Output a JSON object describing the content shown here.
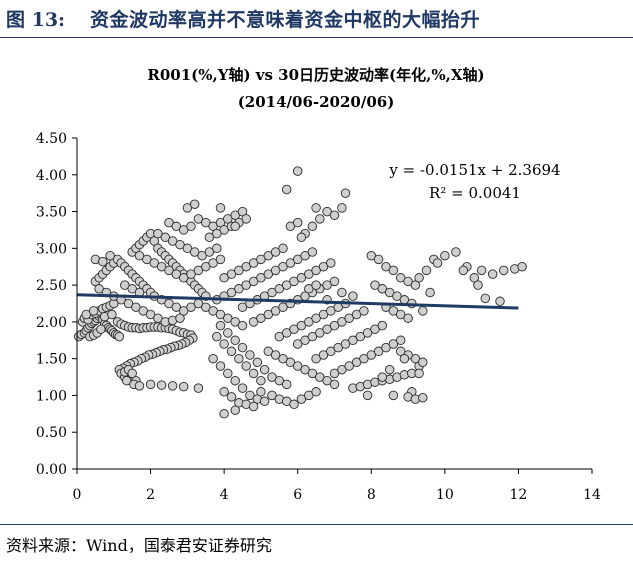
{
  "header": {
    "figure_label": "图 13:",
    "figure_title": "资金波动率高并不意味着资金中枢的大幅抬升"
  },
  "footer": {
    "source": "资料来源：Wind，国泰君安证券研究"
  },
  "colors": {
    "header_text": "#1f3864",
    "marker_fill": "#cfcfcf",
    "marker_stroke": "#2a2a2a",
    "trendline": "#1f3b64"
  },
  "chart_data": {
    "type": "scatter",
    "title": "R001(%,Y轴) vs 30日历史波动率(年化,%,X轴)",
    "subtitle": "(2014/06-2020/06)",
    "xlabel": "",
    "ylabel": "",
    "xlim": [
      0,
      14
    ],
    "ylim": [
      0,
      4.5
    ],
    "x_ticks": [
      "0",
      "2",
      "4",
      "6",
      "8",
      "10",
      "12",
      "14"
    ],
    "y_ticks": [
      "0.00",
      "0.50",
      "1.00",
      "1.50",
      "2.00",
      "2.50",
      "3.00",
      "3.50",
      "4.00",
      "4.50"
    ],
    "grid": false,
    "legend": "none",
    "trendline": {
      "slope": -0.0151,
      "intercept": 2.3694,
      "x_range": [
        0,
        12
      ]
    },
    "equation": "y = -0.0151x + 2.3694",
    "r_squared": "R² = 0.0041",
    "points": [
      [
        0.05,
        1.8
      ],
      [
        0.12,
        1.83
      ],
      [
        0.2,
        1.85
      ],
      [
        0.25,
        1.88
      ],
      [
        0.3,
        1.92
      ],
      [
        0.35,
        1.95
      ],
      [
        0.4,
        1.98
      ],
      [
        0.45,
        2.0
      ],
      [
        0.5,
        2.02
      ],
      [
        0.55,
        2.05
      ],
      [
        0.6,
        2.08
      ],
      [
        0.65,
        2.1
      ],
      [
        0.7,
        2.03
      ],
      [
        0.75,
        1.97
      ],
      [
        0.8,
        1.95
      ],
      [
        0.85,
        1.92
      ],
      [
        0.9,
        1.9
      ],
      [
        0.95,
        1.88
      ],
      [
        1.0,
        1.85
      ],
      [
        1.05,
        1.83
      ],
      [
        1.1,
        1.82
      ],
      [
        1.15,
        1.8
      ],
      [
        0.15,
        2.0
      ],
      [
        0.2,
        2.05
      ],
      [
        0.3,
        2.03
      ],
      [
        0.4,
        2.1
      ],
      [
        0.5,
        2.12
      ],
      [
        0.6,
        2.15
      ],
      [
        0.7,
        2.18
      ],
      [
        0.8,
        2.2
      ],
      [
        0.9,
        2.22
      ],
      [
        1.0,
        2.25
      ],
      [
        0.35,
        1.8
      ],
      [
        0.45,
        1.82
      ],
      [
        0.55,
        1.85
      ],
      [
        0.65,
        1.9
      ],
      [
        0.25,
        2.1
      ],
      [
        0.45,
        2.15
      ],
      [
        0.75,
        2.07
      ],
      [
        0.95,
        2.1
      ],
      [
        1.1,
        2.0
      ],
      [
        1.2,
        1.97
      ],
      [
        1.3,
        1.95
      ],
      [
        1.4,
        1.93
      ],
      [
        1.5,
        1.92
      ],
      [
        1.6,
        1.92
      ],
      [
        1.7,
        1.91
      ],
      [
        1.8,
        1.92
      ],
      [
        1.9,
        1.92
      ],
      [
        2.0,
        1.93
      ],
      [
        2.1,
        1.93
      ],
      [
        2.2,
        1.93
      ],
      [
        2.3,
        1.92
      ],
      [
        2.4,
        1.92
      ],
      [
        2.5,
        1.91
      ],
      [
        2.6,
        1.9
      ],
      [
        2.7,
        1.88
      ],
      [
        2.8,
        1.86
      ],
      [
        2.9,
        1.85
      ],
      [
        3.0,
        1.83
      ],
      [
        3.1,
        1.82
      ],
      [
        3.15,
        1.78
      ],
      [
        3.05,
        1.75
      ],
      [
        2.95,
        1.72
      ],
      [
        2.85,
        1.7
      ],
      [
        2.75,
        1.68
      ],
      [
        2.65,
        1.67
      ],
      [
        2.55,
        1.65
      ],
      [
        2.45,
        1.63
      ],
      [
        2.35,
        1.62
      ],
      [
        2.25,
        1.6
      ],
      [
        2.15,
        1.58
      ],
      [
        2.05,
        1.56
      ],
      [
        1.95,
        1.55
      ],
      [
        1.85,
        1.52
      ],
      [
        1.75,
        1.5
      ],
      [
        1.65,
        1.47
      ],
      [
        1.55,
        1.45
      ],
      [
        1.45,
        1.43
      ],
      [
        1.35,
        1.4
      ],
      [
        1.25,
        1.37
      ],
      [
        1.15,
        1.35
      ],
      [
        1.2,
        1.3
      ],
      [
        1.3,
        1.25
      ],
      [
        1.45,
        1.22
      ],
      [
        1.6,
        1.2
      ],
      [
        1.3,
        1.32
      ],
      [
        1.4,
        1.35
      ],
      [
        1.5,
        1.3
      ],
      [
        1.35,
        1.2
      ],
      [
        1.55,
        1.15
      ],
      [
        1.7,
        1.13
      ],
      [
        2.0,
        1.15
      ],
      [
        2.3,
        1.14
      ],
      [
        2.6,
        1.13
      ],
      [
        2.9,
        1.12
      ],
      [
        3.3,
        1.1
      ],
      [
        0.5,
        2.55
      ],
      [
        0.6,
        2.6
      ],
      [
        0.7,
        2.65
      ],
      [
        0.8,
        2.7
      ],
      [
        0.9,
        2.75
      ],
      [
        1.0,
        2.8
      ],
      [
        1.1,
        2.85
      ],
      [
        1.2,
        2.8
      ],
      [
        0.5,
        2.85
      ],
      [
        0.7,
        2.82
      ],
      [
        0.9,
        2.9
      ],
      [
        1.3,
        2.75
      ],
      [
        1.4,
        2.7
      ],
      [
        1.5,
        2.65
      ],
      [
        1.6,
        2.6
      ],
      [
        1.7,
        2.55
      ],
      [
        1.8,
        2.5
      ],
      [
        1.9,
        2.45
      ],
      [
        2.0,
        2.4
      ],
      [
        2.1,
        2.35
      ],
      [
        1.3,
        2.5
      ],
      [
        1.5,
        2.45
      ],
      [
        1.7,
        2.4
      ],
      [
        0.6,
        2.45
      ],
      [
        0.8,
        2.4
      ],
      [
        1.0,
        2.35
      ],
      [
        1.2,
        2.3
      ],
      [
        1.4,
        2.25
      ],
      [
        1.6,
        2.2
      ],
      [
        1.8,
        2.15
      ],
      [
        2.0,
        2.1
      ],
      [
        2.2,
        2.05
      ],
      [
        2.4,
        2.0
      ],
      [
        2.6,
        2.02
      ],
      [
        2.8,
        2.05
      ],
      [
        1.5,
        2.95
      ],
      [
        1.6,
        3.0
      ],
      [
        1.7,
        3.05
      ],
      [
        1.8,
        3.1
      ],
      [
        1.9,
        3.15
      ],
      [
        2.0,
        3.2
      ],
      [
        2.1,
        3.1
      ],
      [
        2.2,
        3.0
      ],
      [
        2.3,
        2.95
      ],
      [
        2.4,
        2.9
      ],
      [
        2.5,
        2.85
      ],
      [
        2.6,
        2.8
      ],
      [
        2.7,
        2.75
      ],
      [
        2.8,
        2.7
      ],
      [
        2.9,
        2.65
      ],
      [
        3.0,
        2.6
      ],
      [
        3.1,
        2.55
      ],
      [
        3.2,
        2.5
      ],
      [
        3.3,
        2.45
      ],
      [
        3.4,
        2.4
      ],
      [
        3.5,
        2.35
      ],
      [
        1.7,
        2.9
      ],
      [
        1.9,
        2.85
      ],
      [
        2.1,
        2.8
      ],
      [
        2.3,
        2.75
      ],
      [
        2.5,
        2.7
      ],
      [
        2.7,
        2.65
      ],
      [
        2.9,
        2.6
      ],
      [
        3.1,
        2.65
      ],
      [
        3.3,
        2.7
      ],
      [
        3.5,
        2.75
      ],
      [
        3.7,
        2.8
      ],
      [
        3.9,
        2.85
      ],
      [
        2.2,
        3.2
      ],
      [
        2.4,
        3.15
      ],
      [
        2.6,
        3.1
      ],
      [
        2.8,
        3.05
      ],
      [
        3.0,
        3.0
      ],
      [
        3.2,
        2.95
      ],
      [
        3.4,
        2.9
      ],
      [
        3.6,
        2.95
      ],
      [
        3.8,
        3.0
      ],
      [
        2.5,
        3.35
      ],
      [
        2.7,
        3.3
      ],
      [
        2.9,
        3.25
      ],
      [
        3.1,
        3.3
      ],
      [
        3.3,
        3.4
      ],
      [
        3.5,
        3.35
      ],
      [
        3.7,
        3.3
      ],
      [
        3.9,
        3.35
      ],
      [
        4.1,
        3.4
      ],
      [
        4.3,
        3.45
      ],
      [
        4.5,
        3.5
      ],
      [
        4.6,
        3.4
      ],
      [
        4.0,
        3.25
      ],
      [
        4.2,
        3.3
      ],
      [
        4.4,
        3.35
      ],
      [
        3.8,
        3.2
      ],
      [
        3.6,
        3.15
      ],
      [
        3.0,
        3.55
      ],
      [
        3.2,
        3.6
      ],
      [
        3.9,
        3.55
      ],
      [
        4.3,
        3.3
      ],
      [
        2.3,
        2.3
      ],
      [
        2.5,
        2.25
      ],
      [
        2.7,
        2.2
      ],
      [
        2.9,
        2.15
      ],
      [
        3.1,
        2.2
      ],
      [
        3.3,
        2.25
      ],
      [
        3.5,
        2.2
      ],
      [
        3.7,
        2.15
      ],
      [
        3.9,
        2.1
      ],
      [
        4.1,
        2.05
      ],
      [
        4.3,
        2.0
      ],
      [
        4.5,
        1.95
      ],
      [
        3.8,
        2.3
      ],
      [
        4.0,
        2.35
      ],
      [
        4.2,
        2.4
      ],
      [
        4.4,
        2.45
      ],
      [
        4.6,
        2.5
      ],
      [
        4.8,
        2.55
      ],
      [
        5.0,
        2.6
      ],
      [
        5.2,
        2.65
      ],
      [
        5.4,
        2.7
      ],
      [
        5.6,
        2.75
      ],
      [
        5.8,
        2.8
      ],
      [
        6.0,
        2.85
      ],
      [
        6.2,
        2.9
      ],
      [
        6.4,
        2.95
      ],
      [
        4.0,
        2.6
      ],
      [
        4.2,
        2.65
      ],
      [
        4.4,
        2.7
      ],
      [
        4.6,
        2.75
      ],
      [
        4.8,
        2.8
      ],
      [
        5.0,
        2.85
      ],
      [
        5.2,
        2.9
      ],
      [
        5.4,
        2.95
      ],
      [
        5.6,
        3.0
      ],
      [
        4.5,
        2.2
      ],
      [
        4.7,
        2.25
      ],
      [
        4.9,
        2.3
      ],
      [
        5.1,
        2.35
      ],
      [
        5.3,
        2.4
      ],
      [
        5.5,
        2.45
      ],
      [
        5.7,
        2.5
      ],
      [
        5.9,
        2.55
      ],
      [
        6.1,
        2.6
      ],
      [
        6.3,
        2.65
      ],
      [
        6.5,
        2.7
      ],
      [
        6.7,
        2.75
      ],
      [
        6.9,
        2.8
      ],
      [
        4.8,
        2.0
      ],
      [
        5.0,
        2.05
      ],
      [
        5.2,
        2.1
      ],
      [
        5.4,
        2.15
      ],
      [
        5.6,
        2.2
      ],
      [
        5.8,
        2.25
      ],
      [
        6.0,
        2.3
      ],
      [
        6.2,
        2.35
      ],
      [
        6.4,
        2.4
      ],
      [
        6.6,
        2.45
      ],
      [
        6.8,
        2.5
      ],
      [
        7.0,
        2.55
      ],
      [
        3.9,
        1.95
      ],
      [
        4.1,
        1.85
      ],
      [
        4.3,
        1.75
      ],
      [
        4.5,
        1.65
      ],
      [
        4.7,
        1.55
      ],
      [
        4.9,
        1.45
      ],
      [
        5.1,
        1.35
      ],
      [
        5.3,
        1.25
      ],
      [
        5.5,
        1.2
      ],
      [
        5.7,
        1.15
      ],
      [
        3.8,
        1.8
      ],
      [
        4.0,
        1.7
      ],
      [
        4.2,
        1.6
      ],
      [
        4.4,
        1.5
      ],
      [
        4.6,
        1.4
      ],
      [
        4.8,
        1.3
      ],
      [
        5.0,
        1.2
      ],
      [
        3.7,
        1.5
      ],
      [
        3.9,
        1.4
      ],
      [
        4.1,
        1.3
      ],
      [
        4.3,
        1.2
      ],
      [
        4.5,
        1.1
      ],
      [
        4.7,
        1.0
      ],
      [
        4.9,
        0.95
      ],
      [
        5.1,
        0.92
      ],
      [
        4.0,
        1.05
      ],
      [
        4.2,
        0.98
      ],
      [
        4.4,
        0.9
      ],
      [
        4.6,
        0.88
      ],
      [
        4.8,
        0.85
      ],
      [
        4.0,
        0.75
      ],
      [
        4.3,
        0.8
      ],
      [
        5.0,
        1.05
      ],
      [
        5.3,
        1.0
      ],
      [
        5.5,
        0.95
      ],
      [
        5.7,
        0.92
      ],
      [
        5.9,
        0.88
      ],
      [
        6.1,
        0.95
      ],
      [
        6.3,
        1.0
      ],
      [
        6.5,
        1.05
      ],
      [
        5.2,
        1.6
      ],
      [
        5.4,
        1.55
      ],
      [
        5.6,
        1.5
      ],
      [
        5.8,
        1.45
      ],
      [
        6.0,
        1.4
      ],
      [
        6.2,
        1.35
      ],
      [
        6.4,
        1.3
      ],
      [
        6.6,
        1.25
      ],
      [
        6.8,
        1.2
      ],
      [
        7.0,
        1.15
      ],
      [
        5.5,
        1.8
      ],
      [
        5.7,
        1.85
      ],
      [
        5.9,
        1.9
      ],
      [
        6.1,
        1.95
      ],
      [
        6.3,
        2.0
      ],
      [
        6.5,
        2.05
      ],
      [
        6.7,
        2.1
      ],
      [
        6.9,
        2.15
      ],
      [
        7.1,
        2.2
      ],
      [
        7.3,
        2.25
      ],
      [
        6.0,
        1.7
      ],
      [
        6.2,
        1.75
      ],
      [
        6.4,
        1.8
      ],
      [
        6.6,
        1.85
      ],
      [
        6.8,
        1.9
      ],
      [
        7.0,
        1.95
      ],
      [
        7.2,
        2.0
      ],
      [
        7.4,
        2.05
      ],
      [
        7.6,
        2.1
      ],
      [
        7.8,
        2.15
      ],
      [
        6.5,
        1.5
      ],
      [
        6.7,
        1.55
      ],
      [
        6.9,
        1.6
      ],
      [
        7.1,
        1.65
      ],
      [
        7.3,
        1.7
      ],
      [
        7.5,
        1.75
      ],
      [
        7.7,
        1.8
      ],
      [
        7.9,
        1.85
      ],
      [
        8.1,
        1.9
      ],
      [
        8.3,
        1.95
      ],
      [
        7.0,
        1.3
      ],
      [
        7.2,
        1.35
      ],
      [
        7.4,
        1.4
      ],
      [
        7.6,
        1.45
      ],
      [
        7.8,
        1.5
      ],
      [
        8.0,
        1.55
      ],
      [
        8.2,
        1.6
      ],
      [
        8.4,
        1.65
      ],
      [
        8.6,
        1.7
      ],
      [
        8.8,
        1.75
      ],
      [
        7.5,
        1.1
      ],
      [
        7.7,
        1.12
      ],
      [
        7.9,
        1.15
      ],
      [
        8.1,
        1.18
      ],
      [
        8.3,
        1.2
      ],
      [
        8.5,
        1.22
      ],
      [
        8.7,
        1.25
      ],
      [
        8.9,
        1.28
      ],
      [
        9.1,
        1.3
      ],
      [
        9.3,
        1.4
      ],
      [
        9.2,
        1.5
      ],
      [
        9.0,
        1.55
      ],
      [
        8.8,
        1.6
      ],
      [
        9.4,
        1.45
      ],
      [
        9.3,
        1.3
      ],
      [
        9.1,
        1.05
      ],
      [
        9.0,
        0.98
      ],
      [
        9.2,
        0.95
      ],
      [
        9.4,
        0.97
      ],
      [
        8.6,
        1.0
      ],
      [
        6.2,
        3.2
      ],
      [
        6.4,
        3.3
      ],
      [
        6.6,
        3.4
      ],
      [
        6.8,
        3.5
      ],
      [
        7.0,
        3.45
      ],
      [
        7.2,
        3.55
      ],
      [
        5.8,
        3.3
      ],
      [
        6.0,
        3.35
      ],
      [
        6.1,
        3.15
      ],
      [
        5.7,
        3.8
      ],
      [
        6.0,
        4.05
      ],
      [
        6.5,
        3.55
      ],
      [
        7.3,
        3.75
      ],
      [
        6.3,
        2.45
      ],
      [
        6.5,
        2.5
      ],
      [
        6.8,
        2.3
      ],
      [
        7.2,
        2.4
      ],
      [
        7.5,
        2.35
      ],
      [
        8.0,
        2.9
      ],
      [
        8.2,
        2.85
      ],
      [
        8.4,
        2.75
      ],
      [
        8.6,
        2.7
      ],
      [
        8.8,
        2.6
      ],
      [
        9.0,
        2.55
      ],
      [
        9.2,
        2.5
      ],
      [
        8.1,
        2.5
      ],
      [
        8.3,
        2.45
      ],
      [
        8.5,
        2.4
      ],
      [
        8.7,
        2.35
      ],
      [
        8.9,
        2.3
      ],
      [
        9.1,
        2.25
      ],
      [
        8.4,
        2.2
      ],
      [
        8.6,
        2.15
      ],
      [
        8.8,
        2.1
      ],
      [
        9.0,
        2.05
      ],
      [
        9.3,
        2.6
      ],
      [
        9.5,
        2.7
      ],
      [
        9.7,
        2.85
      ],
      [
        9.8,
        2.8
      ],
      [
        10.0,
        2.9
      ],
      [
        10.3,
        2.95
      ],
      [
        10.6,
        2.75
      ],
      [
        10.8,
        2.6
      ],
      [
        11.0,
        2.7
      ],
      [
        11.3,
        2.65
      ],
      [
        11.6,
        2.7
      ],
      [
        11.9,
        2.72
      ],
      [
        12.1,
        2.75
      ],
      [
        10.5,
        2.7
      ],
      [
        10.9,
        2.5
      ],
      [
        11.5,
        2.28
      ],
      [
        11.1,
        2.32
      ],
      [
        9.6,
        2.4
      ],
      [
        9.4,
        2.15
      ],
      [
        8.9,
        1.5
      ],
      [
        8.5,
        1.35
      ],
      [
        8.3,
        1.25
      ],
      [
        7.9,
        1.0
      ]
    ]
  }
}
